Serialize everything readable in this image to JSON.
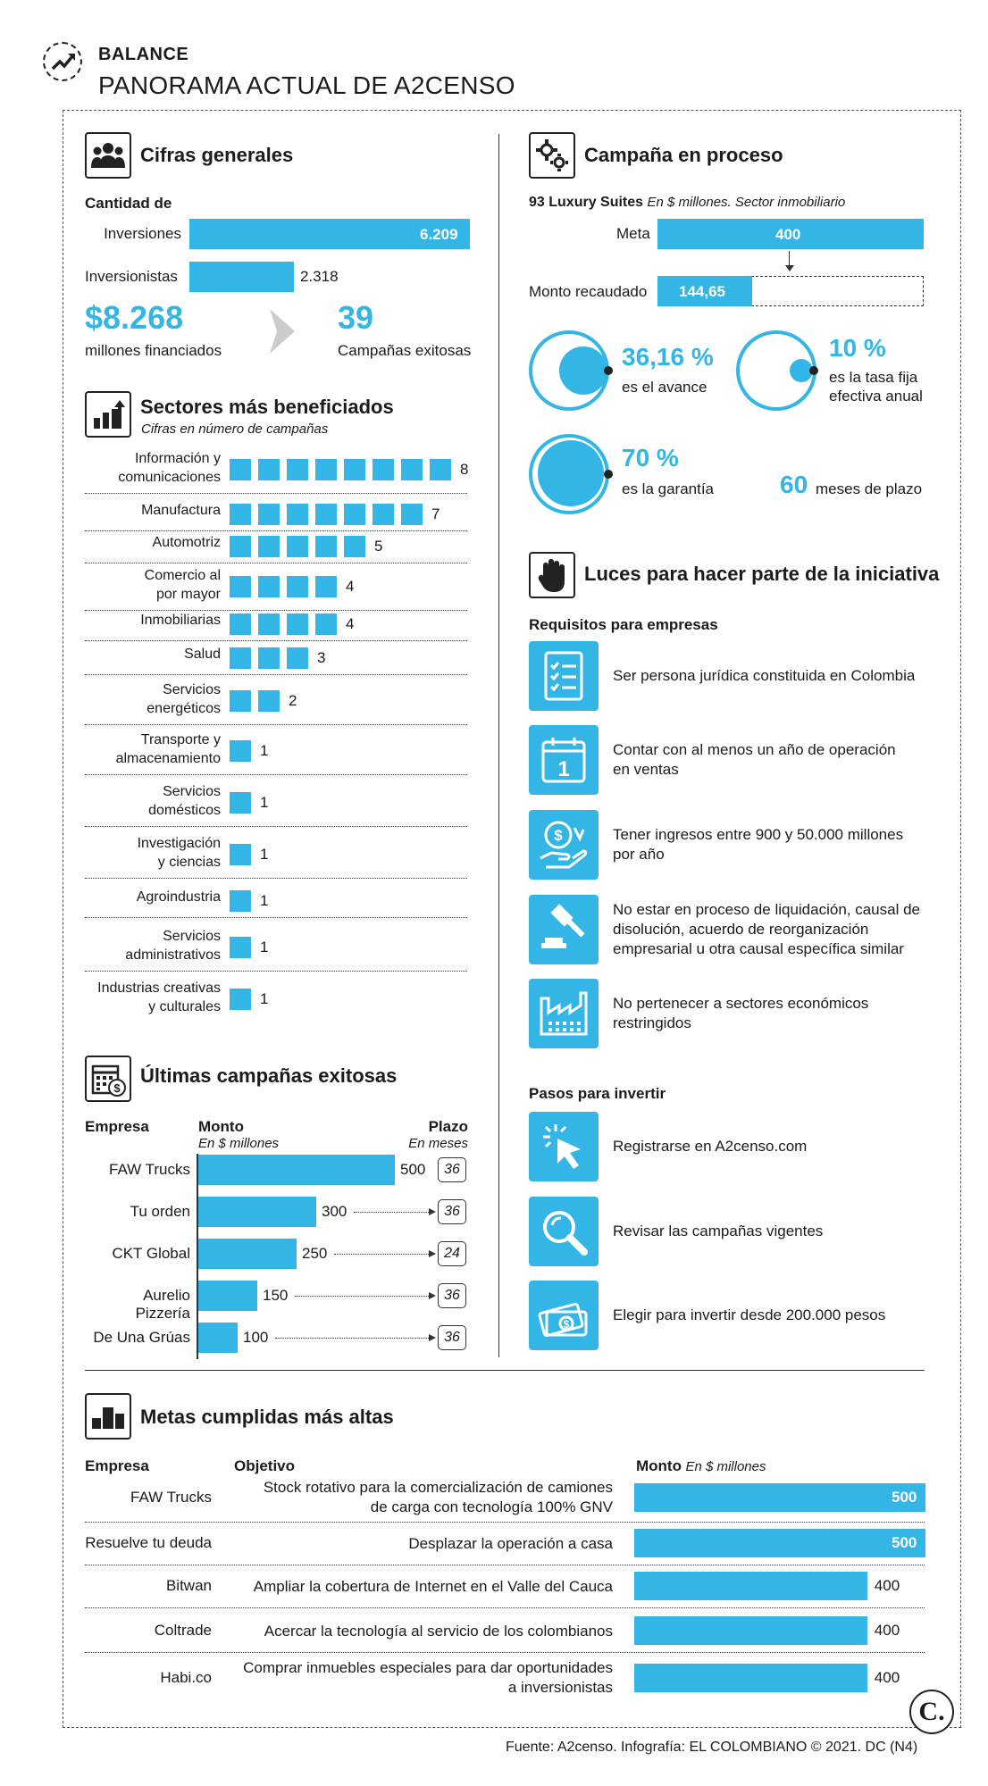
{
  "header": {
    "kicker": "BALANCE",
    "title": "PANORAMA ACTUAL DE A2CENSO"
  },
  "cifras": {
    "title": "Cifras generales",
    "cantidad_label": "Cantidad de",
    "inversiones_label": "Inversiones",
    "inversiones_value": "6.209",
    "inversionistas_label": "Inversionistas",
    "inversionistas_value": "2.318",
    "financiados_value": "$8.268",
    "financiados_label": "millones financiados",
    "campanas_value": "39",
    "campanas_label": "Campañas exitosas"
  },
  "sectores": {
    "title": "Sectores más beneficiados",
    "subtitle": "Cifras en número de campañas",
    "items": [
      {
        "label": "Información y\ncomunicaciones",
        "value": 8
      },
      {
        "label": "Manufactura",
        "value": 7
      },
      {
        "label": "Automotriz",
        "value": 5
      },
      {
        "label": "Comercio al\npor mayor",
        "value": 4
      },
      {
        "label": "Inmobiliarias",
        "value": 4
      },
      {
        "label": "Salud",
        "value": 3
      },
      {
        "label": "Servicios\nenergéticos",
        "value": 2
      },
      {
        "label": "Transporte y\nalmacenamiento",
        "value": 1
      },
      {
        "label": "Servicios\ndomésticos",
        "value": 1
      },
      {
        "label": "Investigación\ny ciencias",
        "value": 1
      },
      {
        "label": "Agroindustria",
        "value": 1
      },
      {
        "label": "Servicios\nadministrativos",
        "value": 1
      },
      {
        "label": "Industrias creativas\ny culturales",
        "value": 1
      }
    ]
  },
  "ultimas": {
    "title": "Últimas campañas exitosas",
    "col_empresa": "Empresa",
    "col_monto": "Monto",
    "col_monto_sub": "En $ millones",
    "col_plazo": "Plazo",
    "col_plazo_sub": "En meses",
    "rows": [
      {
        "empresa": "FAW Trucks",
        "monto": 500,
        "plazo": "36"
      },
      {
        "empresa": "Tu orden",
        "monto": 300,
        "plazo": "36"
      },
      {
        "empresa": "CKT Global",
        "monto": 250,
        "plazo": "24"
      },
      {
        "empresa": "Aurelio Pizzería",
        "monto": 150,
        "plazo": "36"
      },
      {
        "empresa": "De Una Grúas",
        "monto": 100,
        "plazo": "36"
      }
    ]
  },
  "campana": {
    "title": "Campaña en proceso",
    "name": "93 Luxury Suites",
    "subtitle": "En $ millones. Sector inmobiliario",
    "meta_label": "Meta",
    "meta_value": "400",
    "recaudado_label": "Monto recaudado",
    "recaudado_value": "144,65",
    "meta_num": 400,
    "recaudado_num": 144.65,
    "avance_value": "36,16 %",
    "avance_label": "es el avance",
    "tasa_value": "10 %",
    "tasa_label": "es la tasa fija\nefectiva anual",
    "garantia_value": "70 %",
    "garantia_label": "es la garantía",
    "plazo_value": "60",
    "plazo_label": "meses de plazo"
  },
  "luces": {
    "title": "Luces para hacer parte de la iniciativa",
    "req_title": "Requisitos para empresas",
    "requisitos": [
      "Ser persona jurídica constituida en Colombia",
      "Contar con al menos un año de operación\nen ventas",
      "Tener ingresos entre 900 y 50.000 millones\npor año",
      "No estar en proceso de liquidación, causal de\ndisolución, acuerdo de reorganización\nempresarial u otra causal específica similar",
      "No pertenecer a sectores económicos\nrestringidos"
    ],
    "pasos_title": "Pasos para invertir",
    "pasos": [
      "Registrarse en A2censo.com",
      "Revisar las campañas vigentes",
      "Elegir para invertir desde 200.000 pesos"
    ]
  },
  "metas": {
    "title": "Metas cumplidas más altas",
    "col_empresa": "Empresa",
    "col_objetivo": "Objetivo",
    "col_monto": "Monto",
    "col_monto_sub": "En $ millones",
    "rows": [
      {
        "empresa": "FAW Trucks",
        "objetivo": "Stock rotativo para la comercialización de camiones\nde carga con tecnología 100% GNV",
        "monto": 500
      },
      {
        "empresa": "Resuelve tu deuda",
        "objetivo": "Desplazar la operación a casa",
        "monto": 500
      },
      {
        "empresa": "Bitwan",
        "objetivo": "Ampliar la cobertura de Internet en el Valle del Cauca",
        "monto": 400
      },
      {
        "empresa": "Coltrade",
        "objetivo": "Acercar la tecnología al servicio de los colombianos",
        "monto": 400
      },
      {
        "empresa": "Habi.co",
        "objetivo": "Comprar inmuebles especiales para dar oportunidades\na inversionistas",
        "monto": 400
      }
    ]
  },
  "footer": {
    "source": "Fuente: A2censo. Infografía: EL COLOMBIANO © 2021. DC (N4)",
    "logo": "C."
  },
  "colors": {
    "accent": "#33b5e5",
    "text": "#1b1b1b"
  },
  "chart_data": [
    {
      "type": "bar",
      "title": "Cantidad de",
      "categories": [
        "Inversiones",
        "Inversionistas"
      ],
      "values": [
        6209,
        2318
      ]
    },
    {
      "type": "bar",
      "title": "Sectores más beneficiados",
      "categories": [
        "Información y comunicaciones",
        "Manufactura",
        "Automotriz",
        "Comercio al por mayor",
        "Inmobiliarias",
        "Salud",
        "Servicios energéticos",
        "Transporte y almacenamiento",
        "Servicios domésticos",
        "Investigación y ciencias",
        "Agroindustria",
        "Servicios administrativos",
        "Industrias creativas y culturales"
      ],
      "values": [
        8,
        7,
        5,
        4,
        4,
        3,
        2,
        1,
        1,
        1,
        1,
        1,
        1
      ]
    },
    {
      "type": "bar",
      "title": "Últimas campañas exitosas",
      "categories": [
        "FAW Trucks",
        "Tu orden",
        "CKT Global",
        "Aurelio Pizzería",
        "De Una Grúas"
      ],
      "values": [
        500,
        300,
        250,
        150,
        100
      ]
    },
    {
      "type": "bar",
      "title": "Metas cumplidas más altas",
      "categories": [
        "FAW Trucks",
        "Resuelve tu deuda",
        "Bitwan",
        "Coltrade",
        "Habi.co"
      ],
      "values": [
        500,
        500,
        400,
        400,
        400
      ]
    }
  ]
}
